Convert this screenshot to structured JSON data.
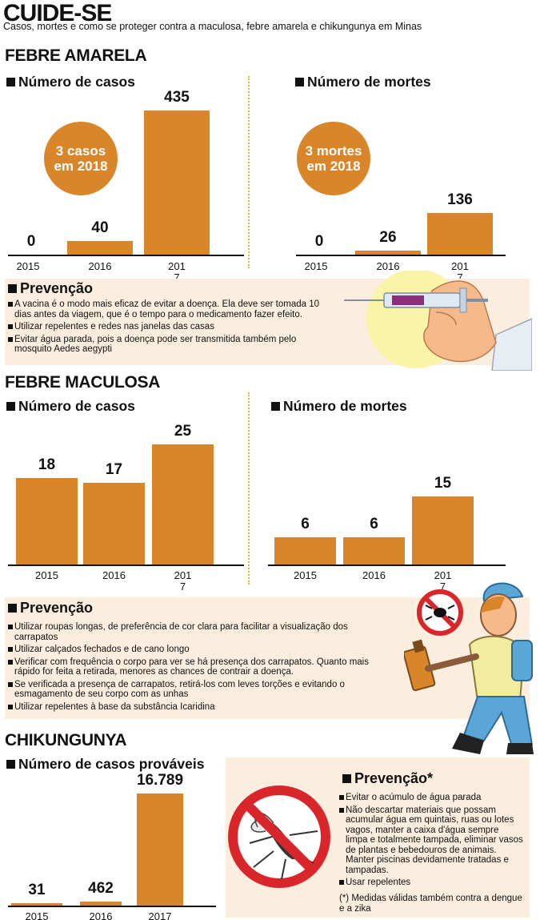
{
  "header": {
    "title": "CUIDE-SE",
    "subtitle": "Casos, mortes e como se proteger contra a maculosa, febre amarela e chikungunya em Minas"
  },
  "febre_amarela": {
    "title": "FEBRE AMARELA",
    "casos_badge": [
      "3 casos",
      "em 2018"
    ],
    "mortes_badge": [
      "3 mortes",
      "em 2018"
    ],
    "prevencao_title": "Prevenção",
    "prevencao": [
      "A vacina é o modo mais eficaz de evitar a doença. Ela deve ser tomada 10 dias antes da viagem, que é o tempo para o medicamento fazer efeito.",
      "Utilizar repelentes e redes nas janelas das casas",
      "Evitar água parada, pois a doença pode ser transmitida também pelo mosquito Aedes aegypti"
    ]
  },
  "febre_maculosa": {
    "title": "FEBRE MACULOSA",
    "prevencao_title": "Prevenção",
    "prevencao": [
      "Utilizar roupas longas, de preferência de cor clara para facilitar a visualização dos carrapatos",
      "Utilizar calçados fechados e de cano longo",
      "Verificar com frequência o corpo para ver se há presença dos carrapatos. Quanto mais rápido for feita a retirada, menores as chances de contrair a doença.",
      "Se verificada a presença de carrapatos, retirá-los com leves torções e evitando o esmagamento de seu corpo com as unhas",
      "Utilizar repelentes à base da substância Icaridina"
    ]
  },
  "chikungunya": {
    "title": "CHIKUNGUNYA",
    "prevencao_title": "Prevenção*",
    "prevencao": [
      "Evitar o acúmulo de água parada",
      "Não descartar materiais que possam acumular água em quintais, ruas ou lotes vagos, manter a caixa d'água sempre limpa e totalmente tampada, eliminar vasos de plantas e bebedouros de animais. Manter piscinas devidamente tratadas e tampadas.",
      "Usar repelentes"
    ],
    "footnote": "(*) Medidas válidas também contra a dengue e a zika"
  },
  "chart_data": [
    {
      "type": "bar",
      "title": "Número de casos",
      "categories": [
        "2015",
        "2016",
        "201\n7"
      ],
      "values": [
        0,
        40,
        435
      ],
      "value_labels": [
        "0",
        "40",
        "435"
      ]
    },
    {
      "type": "bar",
      "title": "Número de mortes",
      "categories": [
        "2015",
        "2016",
        "201\n7"
      ],
      "values": [
        0,
        26,
        136
      ],
      "value_labels": [
        "0",
        "26",
        "136"
      ]
    },
    {
      "type": "bar",
      "title": "Número de casos",
      "categories": [
        "2015",
        "2016",
        "201\n7"
      ],
      "values": [
        18,
        17,
        25
      ],
      "value_labels": [
        "18",
        "17",
        "25"
      ]
    },
    {
      "type": "bar",
      "title": "Número de mortes",
      "categories": [
        "2015",
        "2016",
        "201\n7"
      ],
      "values": [
        6,
        6,
        15
      ],
      "value_labels": [
        "6",
        "6",
        "15"
      ]
    },
    {
      "type": "bar",
      "title": "Número de casos prováveis",
      "categories": [
        "2015",
        "2016",
        "2017"
      ],
      "values": [
        31,
        462,
        16789
      ],
      "value_labels": [
        "31",
        "462",
        "16.789"
      ]
    }
  ],
  "colors": {
    "bar": "#d9862a",
    "box": "#fbeede",
    "circle": "#d9862a",
    "divider": "#e0b93a"
  },
  "icons": [
    "syringe-hand-icon",
    "tick-prohibited-icon",
    "hiker-with-repellent-icon",
    "mosquito-prohibited-icon"
  ]
}
